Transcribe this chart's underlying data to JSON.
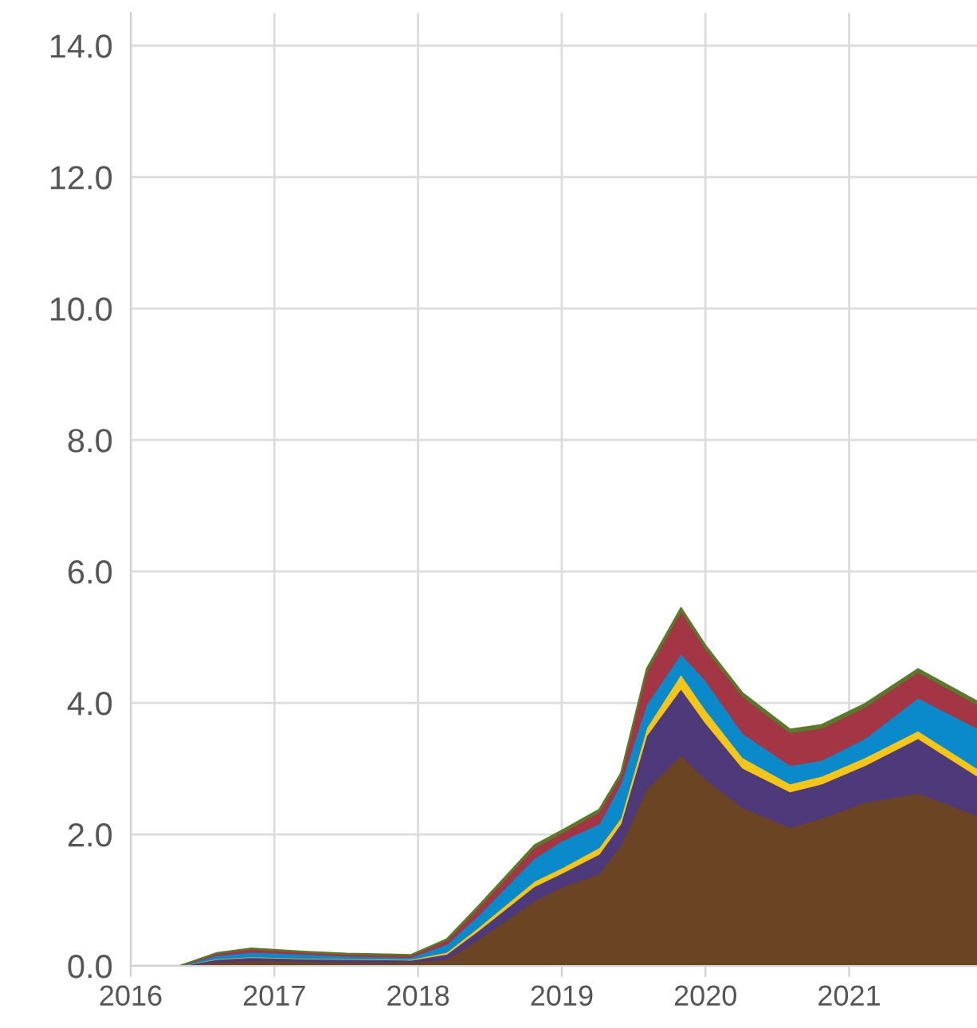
{
  "chart_data": {
    "type": "area",
    "stacked": true,
    "x": [
      2016.0,
      2016.34,
      2016.6,
      2016.84,
      2017.2,
      2017.5,
      2017.95,
      2018.2,
      2018.41,
      2018.81,
      2019.0,
      2019.26,
      2019.41,
      2019.59,
      2019.83,
      2020.0,
      2020.26,
      2020.59,
      2020.81,
      2021.11,
      2021.48,
      2021.89
    ],
    "series": [
      {
        "color": "#6b4423",
        "values": [
          0,
          0,
          0.06,
          0.08,
          0.07,
          0.06,
          0.06,
          0.1,
          0.39,
          0.99,
          1.2,
          1.4,
          1.84,
          2.69,
          3.21,
          2.85,
          2.41,
          2.11,
          2.25,
          2.49,
          2.63,
          2.29
        ]
      },
      {
        "color": "#4e3a7a",
        "values": [
          0,
          0,
          0.04,
          0.05,
          0.04,
          0.04,
          0.03,
          0.08,
          0.13,
          0.22,
          0.21,
          0.3,
          0.32,
          0.81,
          1.01,
          0.85,
          0.6,
          0.54,
          0.52,
          0.56,
          0.83,
          0.6
        ]
      },
      {
        "color": "#f5c518",
        "values": [
          0,
          0,
          0.01,
          0.01,
          0.01,
          0.01,
          0.01,
          0.03,
          0.05,
          0.08,
          0.08,
          0.1,
          0.09,
          0.12,
          0.22,
          0.2,
          0.16,
          0.12,
          0.12,
          0.12,
          0.12,
          0.12
        ]
      },
      {
        "color": "#0a8acb",
        "values": [
          0,
          0,
          0.05,
          0.07,
          0.06,
          0.04,
          0.03,
          0.12,
          0.18,
          0.35,
          0.41,
          0.36,
          0.52,
          0.36,
          0.31,
          0.45,
          0.37,
          0.28,
          0.24,
          0.29,
          0.5,
          0.61
        ]
      },
      {
        "color": "#a33545",
        "values": [
          0,
          0,
          0.03,
          0.05,
          0.03,
          0.03,
          0.03,
          0.06,
          0.11,
          0.16,
          0.12,
          0.18,
          0.12,
          0.49,
          0.65,
          0.48,
          0.56,
          0.5,
          0.49,
          0.48,
          0.39,
          0.36
        ]
      },
      {
        "color": "#5a7a2a",
        "values": [
          0,
          0,
          0.01,
          0.01,
          0.01,
          0.01,
          0.01,
          0.02,
          0.03,
          0.04,
          0.04,
          0.04,
          0.04,
          0.05,
          0.05,
          0.05,
          0.05,
          0.05,
          0.05,
          0.05,
          0.05,
          0.05
        ]
      }
    ],
    "xlim": [
      2016,
      2021.89
    ],
    "xticks": [
      2016,
      2017,
      2018,
      2019,
      2020,
      2021
    ],
    "ylim": [
      0,
      14.5
    ],
    "yticks": [
      {
        "value": 0,
        "label": "0.0"
      },
      {
        "value": 2,
        "label": "2.0"
      },
      {
        "value": 4,
        "label": "4.0"
      },
      {
        "value": 6,
        "label": "6.0"
      },
      {
        "value": 8,
        "label": "8.0"
      },
      {
        "value": 10,
        "label": "10.0"
      },
      {
        "value": 12,
        "label": "12.0"
      },
      {
        "value": 14,
        "label": "14.0"
      }
    ],
    "grid": true
  }
}
